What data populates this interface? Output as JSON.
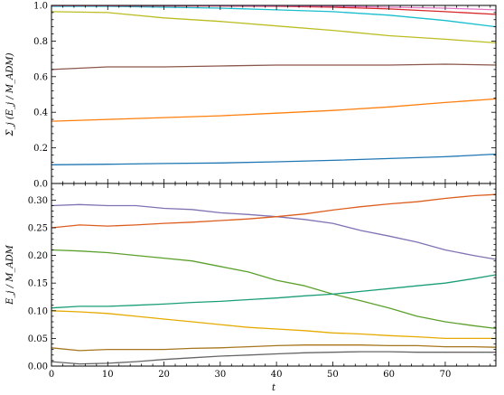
{
  "chart_data": [
    {
      "type": "line",
      "xlabel": "",
      "ylabel": "Σ_j (E_j / M_ADM)",
      "xlim": [
        0,
        79
      ],
      "ylim": [
        0.0,
        1.0
      ],
      "xticks": [
        0,
        10,
        20,
        30,
        40,
        50,
        60,
        70
      ],
      "yticks": [
        0.0,
        0.2,
        0.4,
        0.6,
        0.8,
        1.0
      ],
      "ytick_labels": [
        "0.0",
        "0.2",
        "0.4",
        "0.6",
        "0.8",
        "1.0"
      ],
      "show_xtick_labels": false,
      "x": [
        0,
        10,
        20,
        30,
        40,
        50,
        60,
        70,
        79
      ],
      "series": [
        {
          "color": "#1f77b4",
          "values": [
            0.105,
            0.108,
            0.112,
            0.115,
            0.122,
            0.13,
            0.14,
            0.15,
            0.165
          ]
        },
        {
          "color": "#ff7f0e",
          "values": [
            0.35,
            0.36,
            0.37,
            0.38,
            0.395,
            0.41,
            0.43,
            0.455,
            0.475
          ]
        },
        {
          "color": "#8c564b",
          "values": [
            0.64,
            0.655,
            0.655,
            0.66,
            0.665,
            0.665,
            0.665,
            0.67,
            0.665
          ]
        },
        {
          "color": "#bcbd22",
          "values": [
            0.965,
            0.96,
            0.93,
            0.91,
            0.885,
            0.86,
            0.83,
            0.81,
            0.79
          ]
        },
        {
          "color": "#17becf",
          "values": [
            0.995,
            0.995,
            0.99,
            0.985,
            0.975,
            0.965,
            0.945,
            0.915,
            0.88
          ]
        },
        {
          "color": "#d62728",
          "values": [
            0.998,
            0.998,
            0.997,
            0.997,
            0.995,
            0.99,
            0.98,
            0.965,
            0.95
          ]
        },
        {
          "color": "#e377c2",
          "values": [
            0.999,
            0.999,
            0.999,
            0.998,
            0.997,
            0.996,
            0.99,
            0.985,
            0.975
          ]
        }
      ]
    },
    {
      "type": "line",
      "xlabel": "t",
      "ylabel": "E_j / M_ADM",
      "xlim": [
        0,
        79
      ],
      "ylim": [
        0.0,
        0.33
      ],
      "xticks": [
        0,
        10,
        20,
        30,
        40,
        50,
        60,
        70
      ],
      "xtick_labels": [
        "0",
        "10",
        "20",
        "30",
        "40",
        "50",
        "60",
        "70"
      ],
      "yticks": [
        0.0,
        0.05,
        0.1,
        0.15,
        0.2,
        0.25,
        0.3
      ],
      "ytick_labels": [
        "0.00",
        "0.05",
        "0.10",
        "0.15",
        "0.20",
        "0.25",
        "0.30"
      ],
      "x": [
        0,
        5,
        10,
        15,
        20,
        25,
        30,
        35,
        40,
        45,
        50,
        55,
        60,
        65,
        70,
        75,
        79
      ],
      "series": [
        {
          "color": "#8172b3",
          "values": [
            0.29,
            0.292,
            0.29,
            0.29,
            0.285,
            0.283,
            0.277,
            0.274,
            0.27,
            0.265,
            0.258,
            0.245,
            0.235,
            0.224,
            0.21,
            0.2,
            0.193
          ]
        },
        {
          "color": "#dd5d1e",
          "values": [
            0.25,
            0.255,
            0.253,
            0.255,
            0.258,
            0.26,
            0.263,
            0.266,
            0.27,
            0.275,
            0.282,
            0.288,
            0.293,
            0.297,
            0.303,
            0.308,
            0.31
          ]
        },
        {
          "color": "#5ca02c",
          "values": [
            0.21,
            0.208,
            0.205,
            0.2,
            0.195,
            0.19,
            0.18,
            0.17,
            0.155,
            0.145,
            0.13,
            0.118,
            0.105,
            0.09,
            0.08,
            0.073,
            0.068
          ]
        },
        {
          "color": "#1b9e77",
          "values": [
            0.105,
            0.108,
            0.108,
            0.11,
            0.112,
            0.115,
            0.117,
            0.12,
            0.123,
            0.127,
            0.13,
            0.135,
            0.14,
            0.145,
            0.15,
            0.158,
            0.165
          ]
        },
        {
          "color": "#e6ab02",
          "values": [
            0.1,
            0.098,
            0.095,
            0.09,
            0.085,
            0.08,
            0.075,
            0.07,
            0.067,
            0.064,
            0.06,
            0.058,
            0.055,
            0.053,
            0.05,
            0.05,
            0.05
          ]
        },
        {
          "color": "#a6761d",
          "values": [
            0.033,
            0.028,
            0.03,
            0.03,
            0.03,
            0.032,
            0.033,
            0.035,
            0.037,
            0.038,
            0.038,
            0.038,
            0.037,
            0.037,
            0.035,
            0.035,
            0.034
          ]
        },
        {
          "color": "#666666",
          "values": [
            0.008,
            0.004,
            0.005,
            0.008,
            0.012,
            0.015,
            0.018,
            0.02,
            0.022,
            0.024,
            0.025,
            0.026,
            0.026,
            0.025,
            0.025,
            0.025,
            0.025
          ]
        }
      ]
    }
  ]
}
